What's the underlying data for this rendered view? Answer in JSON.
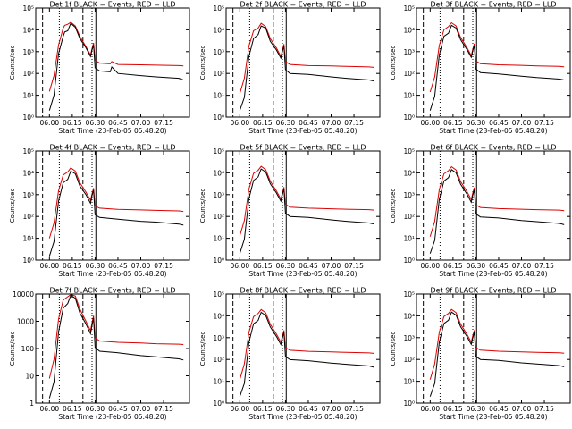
{
  "figure": {
    "colors": {
      "events": "#000000",
      "lld": "#dd0000",
      "frame": "#000000",
      "background": "#ffffff"
    },
    "xtick_labels": [
      "06:00",
      "06:15",
      "06:30",
      "06:45",
      "07:00",
      "07:15"
    ],
    "xlabel": "Start Time (23-Feb-05 05:48:20)",
    "ylabel": "Counts/sec"
  },
  "chart_data": [
    {
      "id": "det1f",
      "type": "line",
      "title": "Det 1f BLACK = Events, RED = LLD",
      "yscale": "log",
      "ylim": [
        1,
        100000
      ],
      "ytick_labels": [
        "10⁰",
        "10¹",
        "10²",
        "10³",
        "10⁴",
        "10⁵"
      ],
      "events_x_min": [
        0,
        3,
        6,
        9,
        10,
        12,
        14,
        17,
        20,
        24,
        27,
        28,
        29,
        30,
        33,
        40,
        41,
        45,
        60,
        70,
        85,
        88
      ],
      "events_y": [
        2,
        10,
        800,
        5000,
        8000,
        9000,
        20000,
        13000,
        4000,
        1500,
        600,
        1200,
        2000,
        180,
        130,
        120,
        200,
        100,
        80,
        70,
        60,
        50
      ],
      "lld_x_min": [
        0,
        3,
        6,
        9,
        10,
        12,
        14,
        17,
        20,
        24,
        27,
        28,
        29,
        30,
        33,
        40,
        41,
        45,
        60,
        70,
        85,
        88
      ],
      "lld_y": [
        15,
        80,
        2000,
        12000,
        16000,
        18000,
        22000,
        15000,
        5000,
        1700,
        700,
        1400,
        2500,
        400,
        300,
        280,
        350,
        260,
        250,
        240,
        230,
        220
      ]
    },
    {
      "id": "det2f",
      "type": "line",
      "title": "Det 2f BLACK = Events, RED = LLD",
      "yscale": "log",
      "ylim": [
        1,
        100000
      ],
      "ytick_labels": [
        "10⁰",
        "10¹",
        "10²",
        "10³",
        "10⁴",
        "10⁵"
      ],
      "events_x_min": [
        0,
        3,
        6,
        9,
        12,
        14,
        17,
        20,
        24,
        27,
        28,
        29,
        30,
        33,
        45,
        60,
        70,
        85,
        88
      ],
      "events_y": [
        2,
        8,
        600,
        4000,
        6000,
        15000,
        12000,
        3000,
        1200,
        500,
        1000,
        1800,
        150,
        100,
        90,
        70,
        60,
        50,
        45
      ],
      "lld_x_min": [
        0,
        3,
        6,
        9,
        12,
        14,
        17,
        20,
        24,
        27,
        28,
        29,
        30,
        33,
        45,
        60,
        70,
        85,
        88
      ],
      "lld_y": [
        12,
        60,
        1800,
        9000,
        12000,
        20000,
        14000,
        4000,
        1500,
        600,
        1200,
        2200,
        350,
        260,
        230,
        220,
        210,
        200,
        190
      ]
    },
    {
      "id": "det3f",
      "type": "line",
      "title": "Det 3f BLACK = Events, RED = LLD",
      "yscale": "log",
      "ylim": [
        1,
        100000
      ],
      "ytick_labels": [
        "10⁰",
        "10¹",
        "10²",
        "10³",
        "10⁴",
        "10⁵"
      ],
      "events_x_min": [
        0,
        3,
        6,
        9,
        12,
        14,
        17,
        20,
        24,
        27,
        28,
        29,
        30,
        33,
        45,
        60,
        70,
        85,
        88
      ],
      "events_y": [
        2,
        9,
        700,
        5000,
        7000,
        16000,
        12000,
        3500,
        1300,
        550,
        1100,
        1900,
        160,
        110,
        95,
        75,
        65,
        55,
        50
      ],
      "lld_x_min": [
        0,
        3,
        6,
        9,
        12,
        14,
        17,
        20,
        24,
        27,
        28,
        29,
        30,
        33,
        45,
        60,
        70,
        85,
        88
      ],
      "lld_y": [
        14,
        70,
        1900,
        10000,
        14000,
        21000,
        15000,
        4500,
        1600,
        650,
        1300,
        2300,
        380,
        280,
        250,
        235,
        220,
        210,
        200
      ]
    },
    {
      "id": "det4f",
      "type": "line",
      "title": "Det 4f BLACK = Events, RED = LLD",
      "yscale": "log",
      "ylim": [
        1,
        100000
      ],
      "ytick_labels": [
        "10⁰",
        "10¹",
        "10²",
        "10³",
        "10⁴",
        "10⁵"
      ],
      "events_x_min": [
        0,
        3,
        6,
        9,
        12,
        14,
        17,
        20,
        24,
        27,
        28,
        29,
        30,
        33,
        45,
        60,
        70,
        85,
        88
      ],
      "events_y": [
        1.5,
        7,
        500,
        3500,
        5000,
        12000,
        9000,
        2500,
        1000,
        400,
        900,
        1600,
        120,
        90,
        75,
        60,
        55,
        45,
        40
      ],
      "lld_x_min": [
        0,
        3,
        6,
        9,
        12,
        14,
        17,
        20,
        24,
        27,
        28,
        29,
        30,
        33,
        45,
        60,
        70,
        85,
        88
      ],
      "lld_y": [
        10,
        50,
        1500,
        8000,
        11000,
        17000,
        12000,
        3500,
        1300,
        550,
        1100,
        2000,
        300,
        240,
        210,
        200,
        190,
        180,
        170
      ]
    },
    {
      "id": "det5f",
      "type": "line",
      "title": "Det 5f BLACK = Events, RED = LLD",
      "yscale": "log",
      "ylim": [
        1,
        100000
      ],
      "ytick_labels": [
        "10⁰",
        "10¹",
        "10²",
        "10³",
        "10⁴",
        "10⁵"
      ],
      "events_x_min": [
        0,
        3,
        6,
        9,
        12,
        14,
        17,
        20,
        24,
        27,
        28,
        29,
        30,
        33,
        45,
        60,
        70,
        85,
        88
      ],
      "events_y": [
        2,
        9,
        650,
        4500,
        6500,
        15000,
        11000,
        3200,
        1200,
        500,
        1000,
        1800,
        140,
        100,
        90,
        70,
        60,
        50,
        45
      ],
      "lld_x_min": [
        0,
        3,
        6,
        9,
        12,
        14,
        17,
        20,
        24,
        27,
        28,
        29,
        30,
        33,
        45,
        60,
        70,
        85,
        88
      ],
      "lld_y": [
        13,
        65,
        1800,
        9500,
        13000,
        20000,
        14000,
        4200,
        1500,
        620,
        1250,
        2200,
        360,
        270,
        240,
        225,
        215,
        205,
        195
      ]
    },
    {
      "id": "det6f",
      "type": "line",
      "title": "Det 6f BLACK = Events, RED = LLD",
      "yscale": "log",
      "ylim": [
        1,
        100000
      ],
      "ytick_labels": [
        "10⁰",
        "10¹",
        "10²",
        "10³",
        "10⁴",
        "10⁵"
      ],
      "events_x_min": [
        0,
        3,
        6,
        9,
        12,
        14,
        17,
        20,
        24,
        27,
        28,
        29,
        30,
        33,
        45,
        60,
        70,
        85,
        88
      ],
      "events_y": [
        2,
        8,
        600,
        4200,
        6000,
        14000,
        10000,
        3000,
        1100,
        450,
        950,
        1700,
        130,
        95,
        85,
        65,
        58,
        48,
        42
      ],
      "lld_x_min": [
        0,
        3,
        6,
        9,
        12,
        14,
        17,
        20,
        24,
        27,
        28,
        29,
        30,
        33,
        45,
        60,
        70,
        85,
        88
      ],
      "lld_y": [
        12,
        60,
        1700,
        9000,
        12500,
        19000,
        13500,
        4000,
        1450,
        600,
        1200,
        2100,
        340,
        260,
        230,
        215,
        205,
        195,
        185
      ]
    },
    {
      "id": "det7f",
      "type": "line",
      "title": "Det 7f BLACK = Events, RED = LLD",
      "yscale": "log",
      "ylim": [
        1,
        10000
      ],
      "ytick_labels": [
        "1",
        "10",
        "100",
        "1000",
        "10000"
      ],
      "events_x_min": [
        0,
        3,
        6,
        9,
        12,
        14,
        17,
        20,
        24,
        27,
        28,
        29,
        30,
        33,
        45,
        60,
        70,
        85,
        88
      ],
      "events_y": [
        1.5,
        6,
        400,
        3000,
        4500,
        9000,
        7000,
        2000,
        800,
        350,
        700,
        1300,
        110,
        80,
        70,
        55,
        50,
        42,
        38
      ],
      "lld_x_min": [
        0,
        3,
        6,
        9,
        12,
        14,
        17,
        20,
        24,
        27,
        28,
        29,
        30,
        33,
        45,
        60,
        70,
        85,
        88
      ],
      "lld_y": [
        8,
        40,
        1200,
        6000,
        8000,
        9500,
        8500,
        2800,
        1000,
        450,
        900,
        1600,
        250,
        190,
        170,
        160,
        150,
        145,
        140
      ]
    },
    {
      "id": "det8f",
      "type": "line",
      "title": "Det 8f BLACK = Events, RED = LLD",
      "yscale": "log",
      "ylim": [
        1,
        100000
      ],
      "ytick_labels": [
        "10⁰",
        "10¹",
        "10²",
        "10³",
        "10⁴",
        "10⁵"
      ],
      "events_x_min": [
        0,
        3,
        6,
        9,
        12,
        14,
        17,
        20,
        24,
        27,
        28,
        29,
        30,
        33,
        45,
        60,
        70,
        85,
        88
      ],
      "events_y": [
        2,
        8,
        600,
        4300,
        6200,
        14500,
        10500,
        3100,
        1150,
        480,
        970,
        1750,
        135,
        98,
        88,
        68,
        60,
        50,
        44
      ],
      "lld_x_min": [
        0,
        3,
        6,
        9,
        12,
        14,
        17,
        20,
        24,
        27,
        28,
        29,
        30,
        33,
        45,
        60,
        70,
        85,
        88
      ],
      "lld_y": [
        12,
        62,
        1750,
        9200,
        12800,
        19500,
        13800,
        4100,
        1480,
        610,
        1220,
        2150,
        350,
        265,
        235,
        220,
        210,
        200,
        190
      ]
    },
    {
      "id": "det9f",
      "type": "line",
      "title": "Det 9f BLACK = Events, RED = LLD",
      "yscale": "log",
      "ylim": [
        1,
        100000
      ],
      "ytick_labels": [
        "10⁰",
        "10¹",
        "10²",
        "10³",
        "10⁴",
        "10⁵"
      ],
      "events_x_min": [
        0,
        3,
        6,
        9,
        12,
        14,
        17,
        20,
        24,
        27,
        28,
        29,
        30,
        33,
        45,
        60,
        70,
        85,
        88
      ],
      "events_y": [
        2,
        8,
        620,
        4400,
        6300,
        14800,
        10800,
        3150,
        1170,
        490,
        980,
        1780,
        138,
        100,
        90,
        70,
        62,
        52,
        46
      ],
      "lld_x_min": [
        0,
        3,
        6,
        9,
        12,
        14,
        17,
        20,
        24,
        27,
        28,
        29,
        30,
        33,
        45,
        60,
        70,
        85,
        88
      ],
      "lld_y": [
        12,
        63,
        1780,
        9300,
        12900,
        19800,
        14000,
        4150,
        1500,
        620,
        1240,
        2180,
        355,
        268,
        238,
        222,
        212,
        202,
        192
      ]
    }
  ]
}
